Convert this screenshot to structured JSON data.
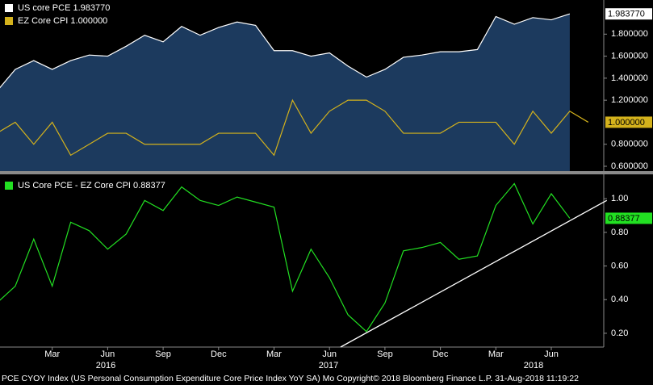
{
  "chart_data": [
    {
      "type": "line",
      "series": [
        {
          "name": "US core PCE",
          "color": "#ffffff",
          "fill": "#1c3a5e",
          "last_label": "1.983770",
          "values": [
            1.28,
            1.48,
            1.56,
            1.48,
            1.56,
            1.61,
            1.6,
            1.69,
            1.79,
            1.73,
            1.87,
            1.79,
            1.86,
            1.91,
            1.88,
            1.65,
            1.65,
            1.6,
            1.63,
            1.51,
            1.41,
            1.48,
            1.59,
            1.61,
            1.64,
            1.64,
            1.66,
            1.96,
            1.89,
            1.95,
            1.93,
            1.98377,
            null
          ]
        },
        {
          "name": "EZ Core CPI",
          "color": "#d4b21c",
          "last_label": "1.000000",
          "values": [
            0.9,
            1.0,
            0.8,
            1.0,
            0.7,
            0.8,
            0.9,
            0.9,
            0.8,
            0.8,
            0.8,
            0.8,
            0.9,
            0.9,
            0.9,
            0.7,
            1.2,
            0.9,
            1.1,
            1.2,
            1.2,
            1.1,
            0.9,
            0.9,
            0.9,
            1.0,
            1.0,
            1.0,
            0.8,
            1.1,
            0.9,
            1.1,
            1.0
          ]
        }
      ],
      "ylim": [
        0.556,
        2.11
      ],
      "yticks": [
        {
          "value": 1.8,
          "label": "1.800000"
        },
        {
          "value": 1.6,
          "label": "1.600000"
        },
        {
          "value": 1.4,
          "label": "1.400000"
        },
        {
          "value": 1.2,
          "label": "1.200000"
        },
        {
          "value": 0.8,
          "label": "0.800000"
        },
        {
          "value": 0.6,
          "label": "0.600000"
        }
      ]
    },
    {
      "type": "line",
      "categories": [
        null,
        null,
        null,
        "Mar",
        null,
        null,
        "Jun",
        null,
        null,
        "Sep",
        null,
        null,
        "Dec",
        null,
        null,
        "Mar",
        null,
        null,
        "Jun",
        null,
        null,
        "Sep",
        null,
        null,
        "Dec",
        null,
        null,
        "Mar",
        null,
        null,
        "Jun",
        null,
        null
      ],
      "x_group_labels": [
        "2016",
        "2017",
        "2018"
      ],
      "series": [
        {
          "name": "US Core PCE - EZ Core CPI",
          "color": "#22e022",
          "last_label": "0.88377",
          "values": [
            0.38,
            0.48,
            0.76,
            0.48,
            0.86,
            0.81,
            0.7,
            0.79,
            0.99,
            0.93,
            1.07,
            0.99,
            0.96,
            1.01,
            0.98,
            0.95,
            0.45,
            0.7,
            0.53,
            0.31,
            0.21,
            0.38,
            0.69,
            0.71,
            0.74,
            0.64,
            0.66,
            0.96,
            1.09,
            0.85,
            1.03,
            0.88377,
            null
          ]
        }
      ],
      "trendline": {
        "color": "#ffffff",
        "x": [
          18.6,
          33
        ],
        "y": [
          0.118,
          0.99
        ]
      },
      "ylim": [
        0.118,
        1.145
      ],
      "yticks": [
        {
          "value": 1.0,
          "label": "1.00"
        },
        {
          "value": 0.8,
          "label": "0.80"
        },
        {
          "value": 0.6,
          "label": "0.60"
        },
        {
          "value": 0.4,
          "label": "0.40"
        },
        {
          "value": 0.2,
          "label": "0.20"
        }
      ]
    }
  ],
  "footer": "PCE CYOY Index (US Personal Consumption Expenditure Core Price Index YoY SA)  Mo Copyright© 2018 Bloomberg Finance L.P. 31-Aug-2018 11:19:22"
}
